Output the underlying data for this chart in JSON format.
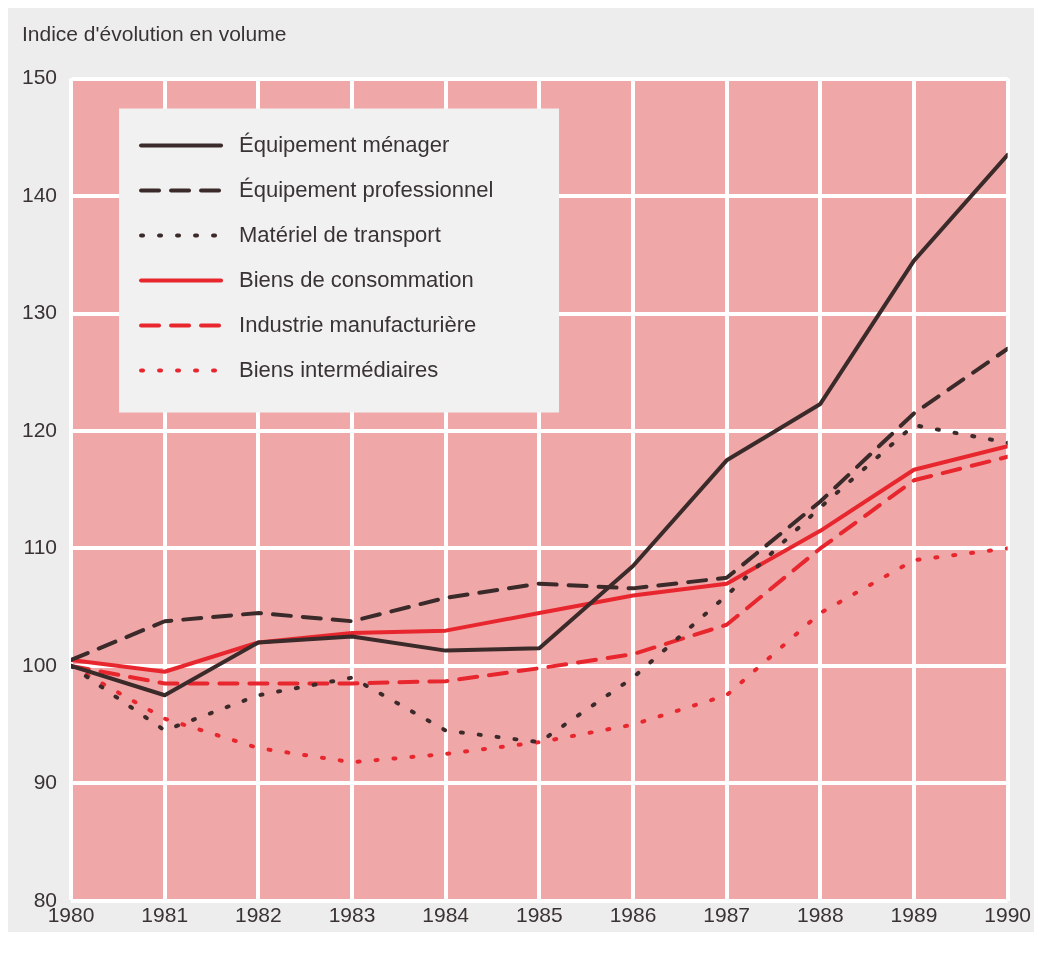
{
  "chart_data": {
    "type": "line",
    "ylabel": "Indice d'évolution en volume",
    "x": [
      1980,
      1981,
      1982,
      1983,
      1984,
      1985,
      1986,
      1987,
      1988,
      1989,
      1990
    ],
    "xlim": [
      1980,
      1990
    ],
    "xticks": [
      1980,
      1981,
      1982,
      1983,
      1984,
      1985,
      1986,
      1987,
      1988,
      1989,
      1990
    ],
    "ylim": [
      80,
      150
    ],
    "yticks": [
      80,
      90,
      100,
      110,
      120,
      130,
      140,
      150
    ],
    "grid": true,
    "legend": "top left",
    "marker": "none",
    "series": [
      {
        "name": "Équipement ménager",
        "color": "#3b2a2a",
        "line_style": "solid",
        "values": [
          100,
          97.5,
          102,
          102.5,
          101.3,
          101.5,
          108.5,
          117.5,
          122.3,
          134.5,
          143.5
        ]
      },
      {
        "name": "Équipement professionnel",
        "color": "#3b2a2a",
        "line_style": "dashed",
        "values": [
          100.5,
          103.8,
          104.5,
          103.8,
          105.8,
          107,
          106.6,
          107.5,
          114,
          121.5,
          127
        ]
      },
      {
        "name": "Matériel de transport",
        "color": "#3b2a2a",
        "line_style": "dotted",
        "values": [
          100,
          94.5,
          97.5,
          99,
          94.5,
          93.5,
          99,
          106,
          113.5,
          120.5,
          119
        ]
      },
      {
        "name": "Biens de consommation",
        "color": "#e8262e",
        "line_style": "solid",
        "values": [
          100.5,
          99.5,
          102,
          102.8,
          103,
          104.5,
          106,
          107,
          111.5,
          116.7,
          118.7
        ]
      },
      {
        "name": "Industrie manufacturière",
        "color": "#e8262e",
        "line_style": "dashed",
        "values": [
          100,
          98.5,
          98.5,
          98.5,
          98.7,
          99.8,
          101,
          103.5,
          110,
          115.8,
          117.8
        ]
      },
      {
        "name": "Biens intermédiaires",
        "color": "#e8262e",
        "line_style": "dotted",
        "values": [
          100,
          95.5,
          93,
          91.8,
          92.5,
          93.5,
          95,
          97.5,
          104.5,
          109,
          110
        ]
      }
    ]
  }
}
